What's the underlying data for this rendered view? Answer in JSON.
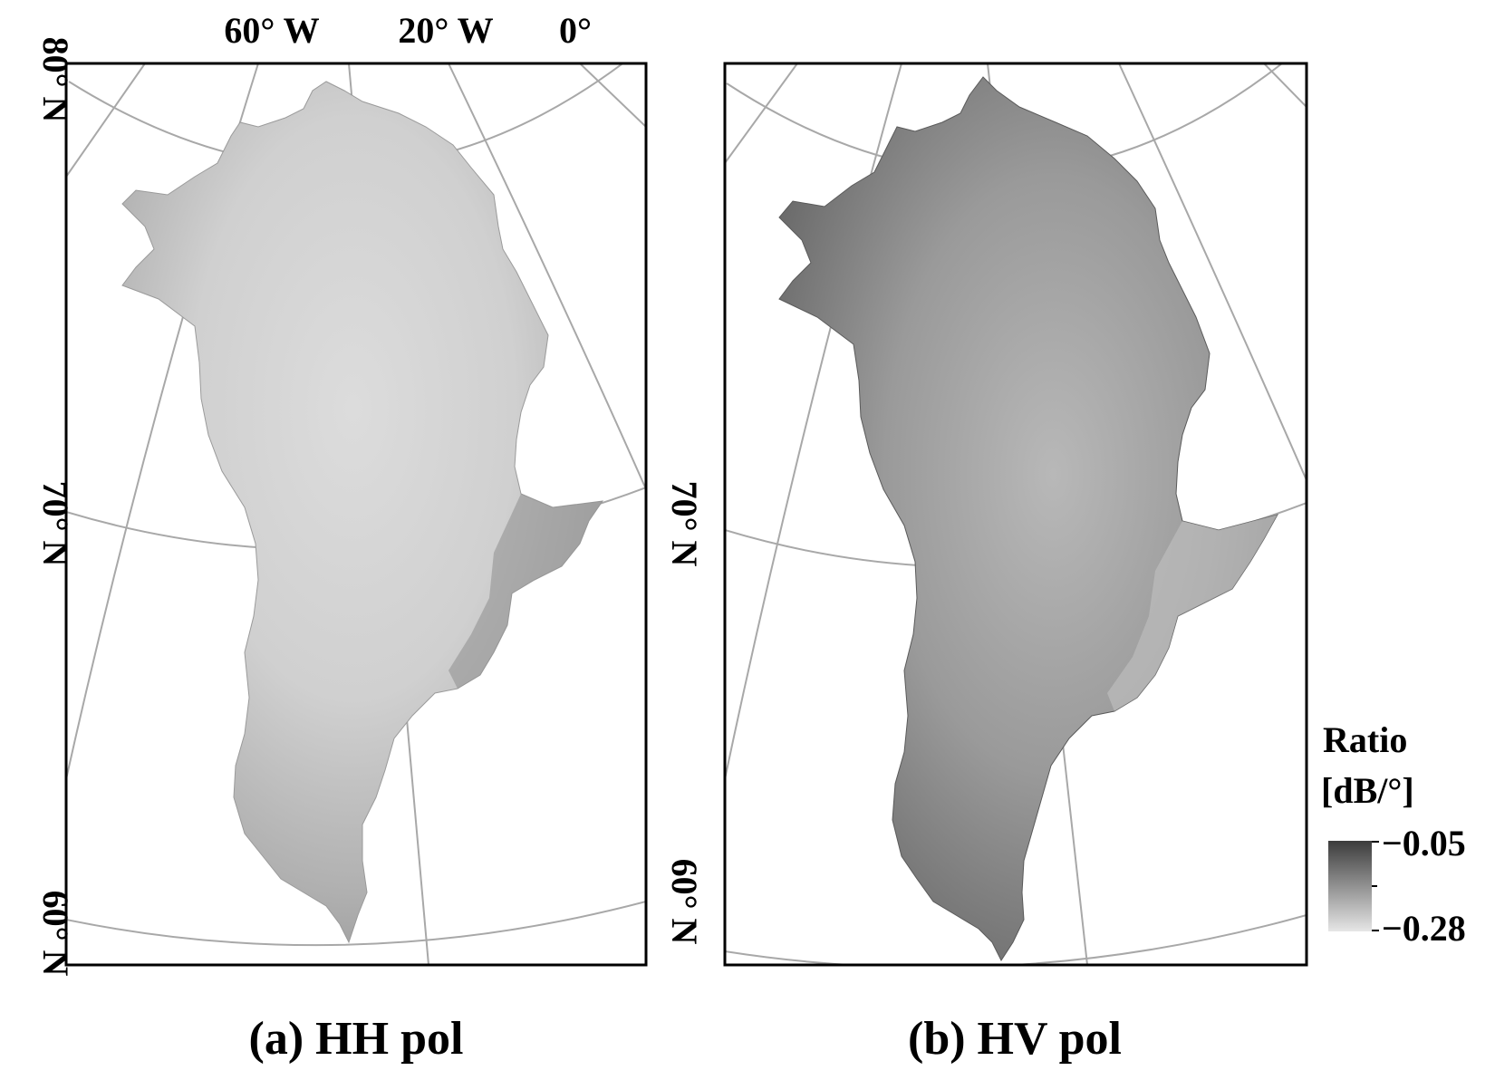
{
  "panels": [
    {
      "id": "hh",
      "caption": "(a) HH pol",
      "lon_labels": [
        "60° W",
        "20° W",
        "0°"
      ],
      "lat_labels": [
        "80° N",
        "70° N",
        "60° N"
      ]
    },
    {
      "id": "hv",
      "caption": "(b) HV pol",
      "lat_labels": [
        "70° N",
        "60° N"
      ]
    }
  ],
  "colorbar": {
    "title_line1": "Ratio",
    "title_line2": "[dB/°]",
    "max_label": "−0.05",
    "min_label": "−0.28",
    "max_value": -0.05,
    "min_value": -0.28,
    "colors": {
      "max": "#3c3c3c",
      "min": "#e6e6e6"
    }
  },
  "colors": {
    "graticule": "#a8a8a8",
    "frame": "#000000",
    "background": "#ffffff"
  }
}
